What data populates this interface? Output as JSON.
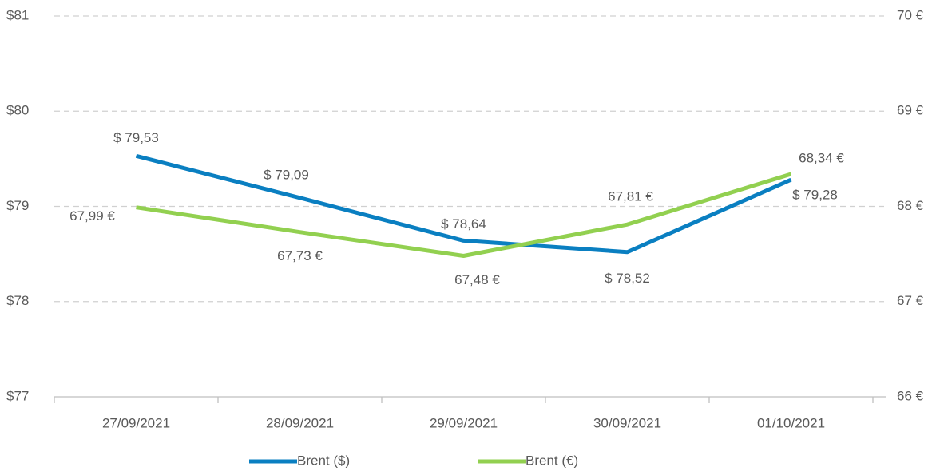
{
  "chart_data": {
    "type": "line",
    "categories": [
      "27/09/2021",
      "28/09/2021",
      "29/09/2021",
      "30/09/2021",
      "01/10/2021"
    ],
    "series": [
      {
        "name": "Brent ($)",
        "color": "#0a7fc1",
        "values": [
          79.53,
          79.09,
          78.64,
          78.52,
          79.28
        ],
        "value_labels": [
          "$ 79,53",
          "$ 79,09",
          "$ 78,64",
          "$ 78,52",
          "$ 79,28"
        ]
      },
      {
        "name": "Brent (€)",
        "color": "#92d050",
        "axis": "y2",
        "values": [
          67.99,
          67.73,
          67.48,
          67.81,
          68.34
        ],
        "value_labels": [
          "67,99 €",
          "67,73 €",
          "67,48 €",
          "67,81 €",
          "68,34 €"
        ]
      }
    ],
    "ylim": [
      77,
      81
    ],
    "yticks": [
      {
        "value": 77,
        "label": "$77"
      },
      {
        "value": 78,
        "label": "$78"
      },
      {
        "value": 79,
        "label": "$79"
      },
      {
        "value": 80,
        "label": "$80"
      },
      {
        "value": 81,
        "label": "$81"
      }
    ],
    "y2lim": [
      66,
      70
    ],
    "y2ticks": [
      {
        "value": 66,
        "label": "66 €"
      },
      {
        "value": 67,
        "label": "67 €"
      },
      {
        "value": 68,
        "label": "68 €"
      },
      {
        "value": 69,
        "label": "69 €"
      },
      {
        "value": 70,
        "label": "70 €"
      }
    ],
    "grid": true,
    "legend": "bottom"
  }
}
